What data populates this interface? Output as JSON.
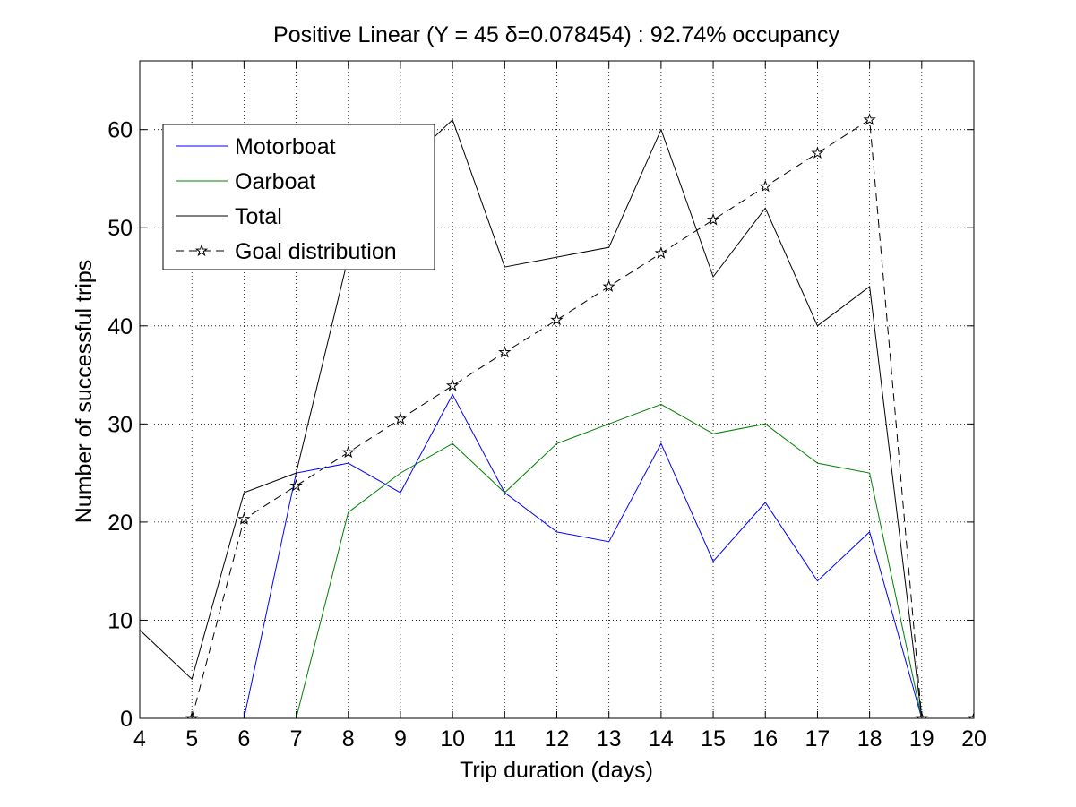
{
  "chart_data": {
    "type": "line",
    "title": "Positive Linear (Y = 45 δ=0.078454) : 92.74% occupancy",
    "xlabel": "Trip duration (days)",
    "ylabel": "Number of successful trips",
    "xlim": [
      4,
      20
    ],
    "ylim": [
      0,
      67
    ],
    "xticks": [
      4,
      5,
      6,
      7,
      8,
      9,
      10,
      11,
      12,
      13,
      14,
      15,
      16,
      17,
      18,
      19,
      20
    ],
    "yticks": [
      0,
      10,
      20,
      30,
      40,
      50,
      60
    ],
    "grid": true,
    "legend_position": "top-left",
    "series": [
      {
        "name": "Motorboat",
        "color": "#0000ff",
        "dash": "solid",
        "marker": "none",
        "x": [
          4,
          5,
          6,
          7,
          8,
          9,
          10,
          11,
          12,
          13,
          14,
          15,
          16,
          17,
          18,
          19
        ],
        "y": [
          0,
          0,
          0,
          25,
          26,
          23,
          33,
          23,
          19,
          18,
          28,
          16,
          22,
          14,
          19,
          0
        ]
      },
      {
        "name": "Oarboat",
        "color": "#008000",
        "dash": "solid",
        "marker": "none",
        "x": [
          4,
          5,
          6,
          7,
          8,
          9,
          10,
          11,
          12,
          13,
          14,
          15,
          16,
          17,
          18,
          19
        ],
        "y": [
          0,
          0,
          0,
          0,
          21,
          25,
          28,
          23,
          28,
          30,
          32,
          29,
          30,
          26,
          25,
          0
        ]
      },
      {
        "name": "Total",
        "color": "#000000",
        "dash": "solid",
        "marker": "none",
        "x": [
          4,
          5,
          6,
          7,
          8,
          9,
          10,
          11,
          12,
          13,
          14,
          15,
          16,
          17,
          18,
          19
        ],
        "y": [
          9,
          4,
          23,
          25,
          47,
          56,
          61,
          46,
          47,
          48,
          60,
          45,
          52,
          40,
          44,
          0
        ]
      },
      {
        "name": "Goal distribution",
        "color": "#000000",
        "dash": "dashed",
        "marker": "star",
        "x": [
          5,
          6,
          7,
          8,
          9,
          10,
          11,
          12,
          13,
          14,
          15,
          16,
          17,
          18,
          19,
          20
        ],
        "y": [
          0,
          20.3,
          23.7,
          27.1,
          30.5,
          33.9,
          37.3,
          40.6,
          44.0,
          47.4,
          50.8,
          54.2,
          57.6,
          61.0,
          0,
          0
        ]
      }
    ]
  }
}
